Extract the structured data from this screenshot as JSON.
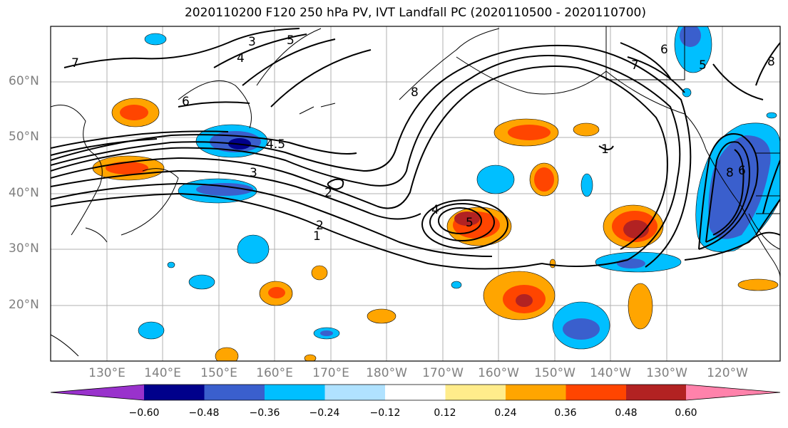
{
  "title": "2020110200 F120 250 hPa PV, IVT Landfall PC (2020110500 - 2020110700)",
  "lat_labels": [
    "60°N",
    "50°N",
    "40°N",
    "30°N",
    "20°N"
  ],
  "lon_labels": [
    "130°E",
    "140°E",
    "150°E",
    "160°E",
    "170°E",
    "180°W",
    "170°W",
    "160°W",
    "150°W",
    "140°W",
    "130°W",
    "120°W"
  ],
  "colorbar": {
    "ticks": [
      "−0.60",
      "−0.48",
      "−0.36",
      "−0.24",
      "−0.12",
      "0.12",
      "0.24",
      "0.36",
      "0.48",
      "0.60"
    ],
    "colors": [
      "#9932cc",
      "#00008b",
      "#3a5fcd",
      "#00bfff",
      "#b0e2ff",
      "#ffffff",
      "#ffec8b",
      "#ffa500",
      "#ff4500",
      "#b22222",
      "#ff82ab"
    ]
  },
  "contour_labels": [
    {
      "text": "3"
    },
    {
      "text": "4"
    },
    {
      "text": "5"
    },
    {
      "text": "6"
    },
    {
      "text": "7"
    },
    {
      "text": "4.5"
    },
    {
      "text": "3"
    },
    {
      "text": "2"
    },
    {
      "text": "1"
    },
    {
      "text": "2"
    },
    {
      "text": "8"
    },
    {
      "text": "4"
    },
    {
      "text": "5"
    },
    {
      "text": "6"
    },
    {
      "text": "7"
    },
    {
      "text": "5"
    },
    {
      "text": "8"
    },
    {
      "text": "1"
    },
    {
      "text": "8"
    },
    {
      "text": "6"
    }
  ]
}
